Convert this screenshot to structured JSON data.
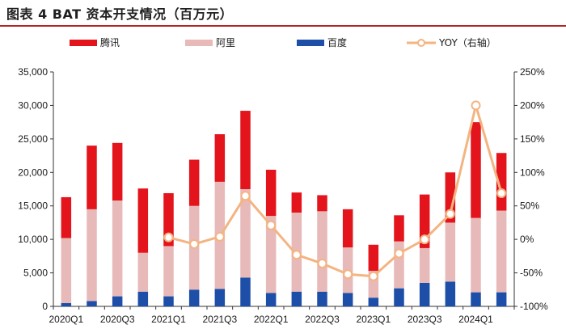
{
  "header": {
    "title": "图表 4   BAT 资本开支情况（百万元）"
  },
  "colors": {
    "tencent": "#e3141b",
    "alibaba": "#e8b9b9",
    "baidu": "#1d4fa8",
    "yoy": "#f4b482",
    "axis": "#333333",
    "title_rule": "#b22222"
  },
  "chart_data": {
    "type": "bar",
    "stacked": true,
    "title": "BAT 资本开支情况（百万元）",
    "categories": [
      "2020Q1",
      "2020Q2",
      "2020Q3",
      "2020Q4",
      "2021Q1",
      "2021Q2",
      "2021Q3",
      "2021Q4",
      "2022Q1",
      "2022Q2",
      "2022Q3",
      "2022Q4",
      "2023Q1",
      "2023Q2",
      "2023Q3",
      "2023Q4",
      "2024Q1",
      "2024Q2"
    ],
    "x_tick_labels": [
      "2020Q1",
      "2020Q3",
      "2021Q1",
      "2021Q3",
      "2022Q1",
      "2022Q3",
      "2023Q1",
      "2023Q3",
      "2024Q1"
    ],
    "series": [
      {
        "name": "百度",
        "key": "baidu",
        "axis": "left",
        "values": [
          500,
          800,
          1500,
          2200,
          1500,
          2500,
          2600,
          4300,
          2000,
          2200,
          2200,
          2000,
          1300,
          2700,
          3500,
          3700,
          2100,
          2100
        ]
      },
      {
        "name": "阿里",
        "key": "alibaba",
        "axis": "left",
        "values": [
          9700,
          13700,
          14300,
          5800,
          7500,
          12500,
          16000,
          13200,
          11500,
          11800,
          12000,
          6800,
          4000,
          7000,
          5200,
          8800,
          11100,
          12200
        ]
      },
      {
        "name": "腾讯",
        "key": "tencent",
        "axis": "left",
        "values": [
          6100,
          9500,
          8600,
          9600,
          7900,
          6900,
          7100,
          11700,
          6900,
          3000,
          2400,
          5700,
          3900,
          3900,
          8000,
          7500,
          14300,
          8600
        ]
      },
      {
        "name": "YOY（右轴）",
        "key": "yoy",
        "axis": "right",
        "type": "line",
        "values": [
          null,
          null,
          null,
          null,
          3,
          -7,
          4,
          65,
          21,
          -23,
          -36,
          -52,
          -55,
          -21,
          0,
          38,
          200,
          69
        ]
      }
    ],
    "legend": [
      "腾讯",
      "阿里",
      "百度",
      "YOY（右轴）"
    ],
    "legend_position": "top",
    "y_left": {
      "min": 0,
      "max": 35000,
      "step": 5000,
      "tick_labels": [
        "0",
        "5,000",
        "10,000",
        "15,000",
        "20,000",
        "25,000",
        "30,000",
        "35,000"
      ]
    },
    "y_right": {
      "min": -100,
      "max": 250,
      "step": 50,
      "tick_labels": [
        "-100%",
        "-50%",
        "0%",
        "50%",
        "100%",
        "150%",
        "200%",
        "250%"
      ]
    },
    "grid": false
  }
}
